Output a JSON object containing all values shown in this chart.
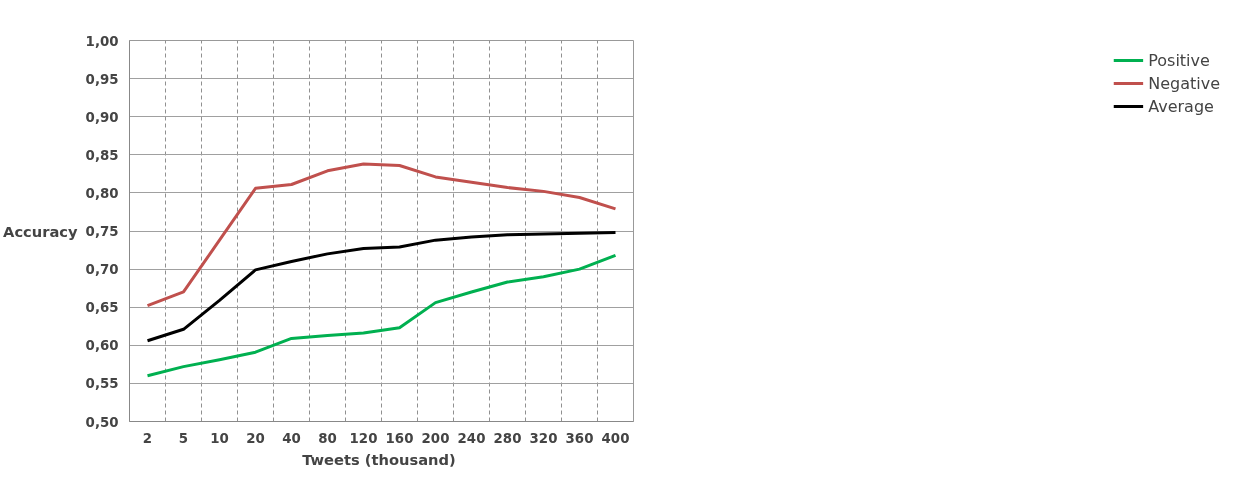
{
  "chart_data": {
    "type": "line",
    "xlabel": "Tweets  (thousand)",
    "ylabel": "Accuracy",
    "categories": [
      "2",
      "5",
      "10",
      "20",
      "40",
      "80",
      "120",
      "160",
      "200",
      "240",
      "280",
      "320",
      "360",
      "400"
    ],
    "series": [
      {
        "name": "Positive",
        "color": "#00b050",
        "values": [
          0.56,
          0.572,
          0.581,
          0.591,
          0.609,
          0.613,
          0.616,
          0.623,
          0.656,
          0.67,
          0.683,
          0.69,
          0.7,
          0.718
        ]
      },
      {
        "name": "Negative",
        "color": "#c0504d",
        "values": [
          0.652,
          0.67,
          0.738,
          0.806,
          0.811,
          0.829,
          0.838,
          0.836,
          0.821,
          0.814,
          0.807,
          0.802,
          0.794,
          0.779
        ]
      },
      {
        "name": "Average",
        "color": "#000000",
        "values": [
          0.606,
          0.621,
          0.659,
          0.699,
          0.71,
          0.72,
          0.727,
          0.729,
          0.738,
          0.742,
          0.745,
          0.746,
          0.747,
          0.748
        ]
      }
    ],
    "ylim": [
      0.5,
      1.0
    ],
    "yticks": [
      {
        "value": 0.5,
        "label": "0,50"
      },
      {
        "value": 0.55,
        "label": "0,55"
      },
      {
        "value": 0.6,
        "label": "0,60"
      },
      {
        "value": 0.65,
        "label": "0,65"
      },
      {
        "value": 0.7,
        "label": "0,70"
      },
      {
        "value": 0.75,
        "label": "0,75"
      },
      {
        "value": 0.8,
        "label": "0,80"
      },
      {
        "value": 0.85,
        "label": "0,85"
      },
      {
        "value": 0.9,
        "label": "0,90"
      },
      {
        "value": 0.95,
        "label": "0,95"
      },
      {
        "value": 1.0,
        "label": "1,00"
      }
    ],
    "grid": true,
    "legend": "right",
    "marker": "none",
    "line_style": "solid"
  }
}
